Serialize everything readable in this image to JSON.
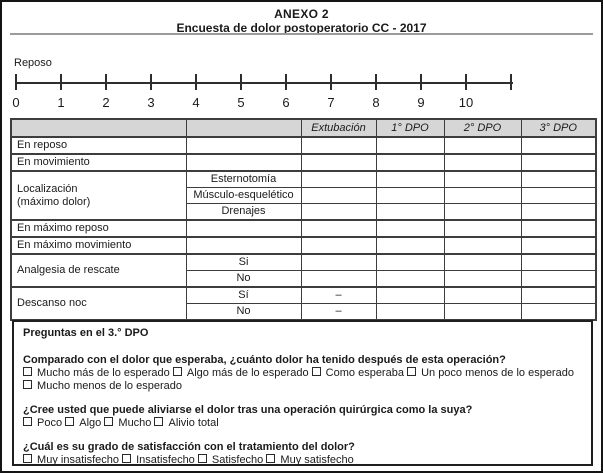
{
  "header": {
    "title": "ANEXO 2",
    "subtitle": "Encuesta de dolor postoperatorio CC - 2017"
  },
  "scale": {
    "label": "Reposo",
    "ticks": [
      "0",
      "1",
      "2",
      "3",
      "4",
      "5",
      "6",
      "7",
      "8",
      "9",
      "10",
      ""
    ]
  },
  "table": {
    "headers": {
      "extubacion": "Extubación",
      "dpo1": "1° DPO",
      "dpo2": "2° DPO",
      "dpo3": "3° DPO"
    },
    "rows": {
      "en_reposo": "En reposo",
      "en_movimiento": "En movimiento",
      "localizacion": "Localización\n(máximo dolor)",
      "localizacion_subs": [
        "Esternotomía",
        "Músculo-esquelético",
        "Drenajes"
      ],
      "en_maximo_reposo": "En máximo reposo",
      "en_maximo_movimiento": "En máximo movimiento",
      "analgesia": "Analgesia de rescate",
      "analgesia_subs": [
        "Si",
        "No"
      ],
      "descanso": "Descanso noc",
      "descanso_subs": [
        "Sí",
        "No"
      ],
      "descanso_extubacion": [
        "–",
        "–"
      ]
    }
  },
  "questions": {
    "section_title": "Preguntas en el 3.° DPO",
    "q1": {
      "text": "Comparado con el dolor que esperaba, ¿cuánto dolor ha tenido después de esta operación?",
      "options": [
        "Mucho más de lo esperado",
        "Algo más de lo esperado",
        "Como esperaba",
        "Un poco menos de lo esperado",
        "Mucho menos de lo esperado"
      ]
    },
    "q2": {
      "text": "¿Cree usted que puede aliviarse el dolor tras una operación quirúrgica como la suya?",
      "options": [
        "Poco",
        "Algo",
        "Mucho",
        "Alivio total"
      ]
    },
    "q3": {
      "text": "¿Cuál es su grado de satisfacción con el tratamiento del dolor?",
      "options": [
        "Muy insatisfecho",
        "Insatisfecho",
        "Satisfecho",
        "Muy satisfecho"
      ]
    }
  }
}
